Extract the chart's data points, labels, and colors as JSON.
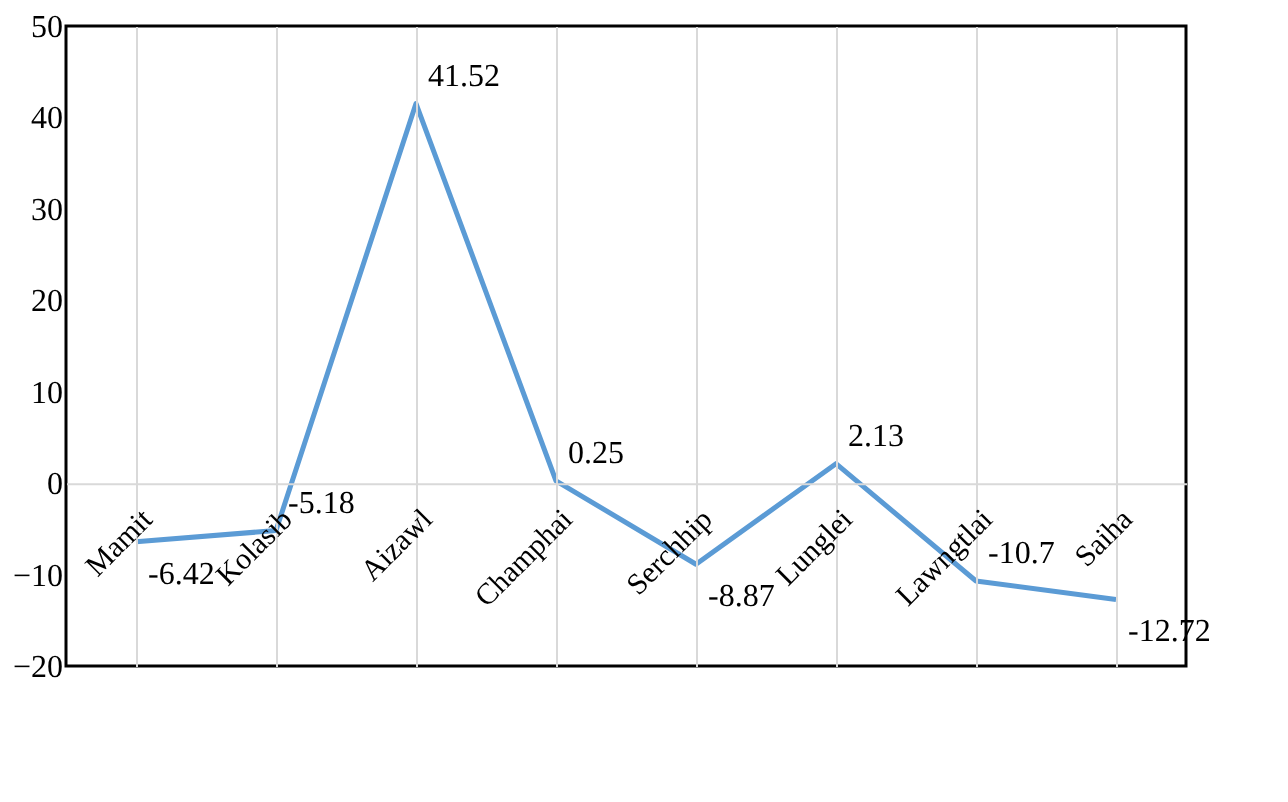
{
  "chart_data": {
    "type": "line",
    "categories": [
      "Mamit",
      "Kolasib",
      "Aizawl",
      "Champhai",
      "Serchhip",
      "Lunglei",
      "Lawngtlai",
      "Saiha"
    ],
    "series": [
      {
        "color": "#5b9bd5",
        "values": [
          -6.42,
          -5.18,
          41.52,
          0.25,
          -8.87,
          2.13,
          -10.7,
          -12.72
        ]
      }
    ],
    "ylim": [
      -20,
      50
    ],
    "yticks": [
      -20,
      -10,
      0,
      10,
      20,
      30,
      40,
      50
    ],
    "grid": "x",
    "data_labels": true,
    "marker": "none",
    "line_style": "solid",
    "legend": false
  }
}
